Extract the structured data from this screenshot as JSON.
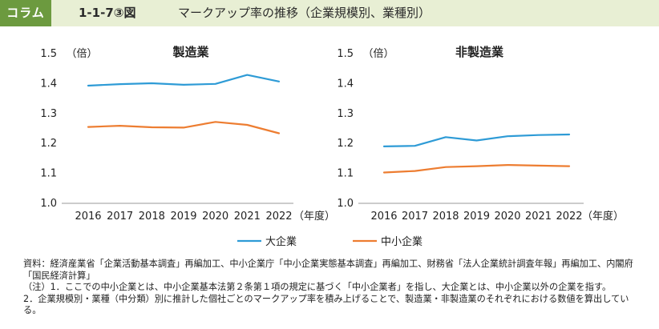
{
  "header": {
    "tag": "コラム",
    "figure_number": "1-1-7③図",
    "title": "マークアップ率の推移（企業規模別、業種別）"
  },
  "colors": {
    "large": "#2e9bd6",
    "sme": "#ed7d31",
    "header_bg": "#e8efd4",
    "tag_bg": "#6c9a3f"
  },
  "chart_data": [
    {
      "type": "line",
      "title": "製造業",
      "ylabel": "（倍）",
      "xlabel": "（年度）",
      "x": [
        "2016",
        "2017",
        "2018",
        "2019",
        "2020",
        "2021",
        "2022"
      ],
      "ylim": [
        1.0,
        1.5
      ],
      "yticks": [
        "1.0",
        "1.1",
        "1.2",
        "1.3",
        "1.4",
        "1.5"
      ],
      "grid": false,
      "series": [
        {
          "name": "大企業",
          "values": [
            1.393,
            1.398,
            1.401,
            1.396,
            1.399,
            1.429,
            1.407
          ]
        },
        {
          "name": "中小企業",
          "values": [
            1.255,
            1.259,
            1.254,
            1.253,
            1.272,
            1.262,
            1.234
          ]
        }
      ]
    },
    {
      "type": "line",
      "title": "非製造業",
      "ylabel": "（倍）",
      "xlabel": "（年度）",
      "x": [
        "2016",
        "2017",
        "2018",
        "2019",
        "2020",
        "2021",
        "2022"
      ],
      "ylim": [
        1.0,
        1.5
      ],
      "yticks": [
        "1.0",
        "1.1",
        "1.2",
        "1.3",
        "1.4",
        "1.5"
      ],
      "grid": false,
      "series": [
        {
          "name": "大企業",
          "values": [
            1.19,
            1.192,
            1.221,
            1.21,
            1.224,
            1.228,
            1.23
          ]
        },
        {
          "name": "中小企業",
          "values": [
            1.103,
            1.108,
            1.121,
            1.124,
            1.128,
            1.126,
            1.124
          ]
        }
      ]
    }
  ],
  "legend": {
    "large": "大企業",
    "sme": "中小企業"
  },
  "notes": {
    "source": "資料：経済産業省「企業活動基本調査」再編加工、中小企業庁「中小企業実態基本調査」再編加工、財務省「法人企業統計調査年報」再編加工、内閣府「国民経済計算」",
    "note1": "（注）1．ここでの中小企業とは、中小企業基本法第２条第１項の規定に基づく「中小企業者」を指し、大企業とは、中小企業以外の企業を指す。",
    "note2": "2．企業規模別・業種（中分類）別に推計した個社ごとのマークアップ率を積み上げることで、製造業・非製造業のそれぞれにおける数値を算出している。"
  }
}
